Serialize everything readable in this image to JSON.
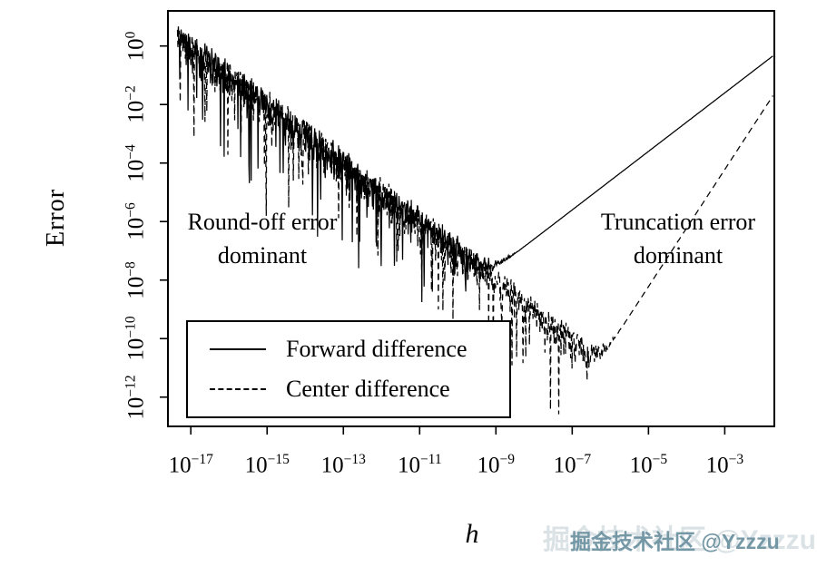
{
  "chart_data": {
    "type": "line",
    "title": "",
    "xlabel": "h",
    "ylabel": "Error",
    "x_scale": "log10",
    "y_scale": "log10",
    "grid": false,
    "x_range_log10": [
      -17.6,
      -1.7
    ],
    "y_range_log10": [
      -13,
      1.2
    ],
    "x_ticks_log10": [
      -17,
      -15,
      -13,
      -11,
      -9,
      -7,
      -5,
      -3
    ],
    "y_ticks_log10": [
      0,
      -2,
      -4,
      -6,
      -8,
      -10,
      -12
    ],
    "legend": {
      "position": "lower-left",
      "entries": [
        {
          "label": "Forward difference",
          "line": "solid"
        },
        {
          "label": "Center difference",
          "line": "dashed"
        }
      ]
    },
    "series": [
      {
        "name": "Forward difference",
        "style": "solid",
        "model": {
          "type": "finite-difference-error",
          "machine_eps": 1.1e-16,
          "roundoff_coeff": 0.2,
          "truncation_coeff": 25,
          "truncation_order": 1,
          "noise_region_log10h": [
            -17.35,
            -8.5
          ],
          "seed": 42
        },
        "key_points": [
          {
            "h": 1e-17,
            "error": 4
          },
          {
            "h": 1e-13,
            "error": 0.0002
          },
          {
            "h": 1e-09,
            "error": 3e-08
          },
          {
            "h": 3e-09,
            "error": 1.5e-07
          },
          {
            "h": 1e-05,
            "error": 0.00025
          },
          {
            "h": 0.01,
            "error": 0.3
          }
        ]
      },
      {
        "name": "Center difference",
        "style": "dashed",
        "model": {
          "type": "finite-difference-error",
          "machine_eps": 1.1e-16,
          "roundoff_coeff": 0.2,
          "truncation_coeff": 60,
          "truncation_order": 2,
          "noise_region_log10h": [
            -17.35,
            -6.0
          ],
          "seed": 1337
        },
        "key_points": [
          {
            "h": 1e-17,
            "error": 3
          },
          {
            "h": 1e-09,
            "error": 2e-08
          },
          {
            "h": 6e-07,
            "error": 6e-11
          },
          {
            "h": 0.0001,
            "error": 6e-07
          },
          {
            "h": 0.01,
            "error": 0.02
          }
        ]
      }
    ],
    "annotations": [
      {
        "lines": [
          "Round-off error",
          "dominant"
        ],
        "x_log10": -15.0,
        "y_log10": -6.1
      },
      {
        "lines": [
          "Truncation error",
          "dominant"
        ],
        "x_log10": -4.2,
        "y_log10": -6.1
      }
    ]
  },
  "watermark": {
    "text": "掘金技术社区 @Yzzzu",
    "color": "#6e93a2"
  }
}
